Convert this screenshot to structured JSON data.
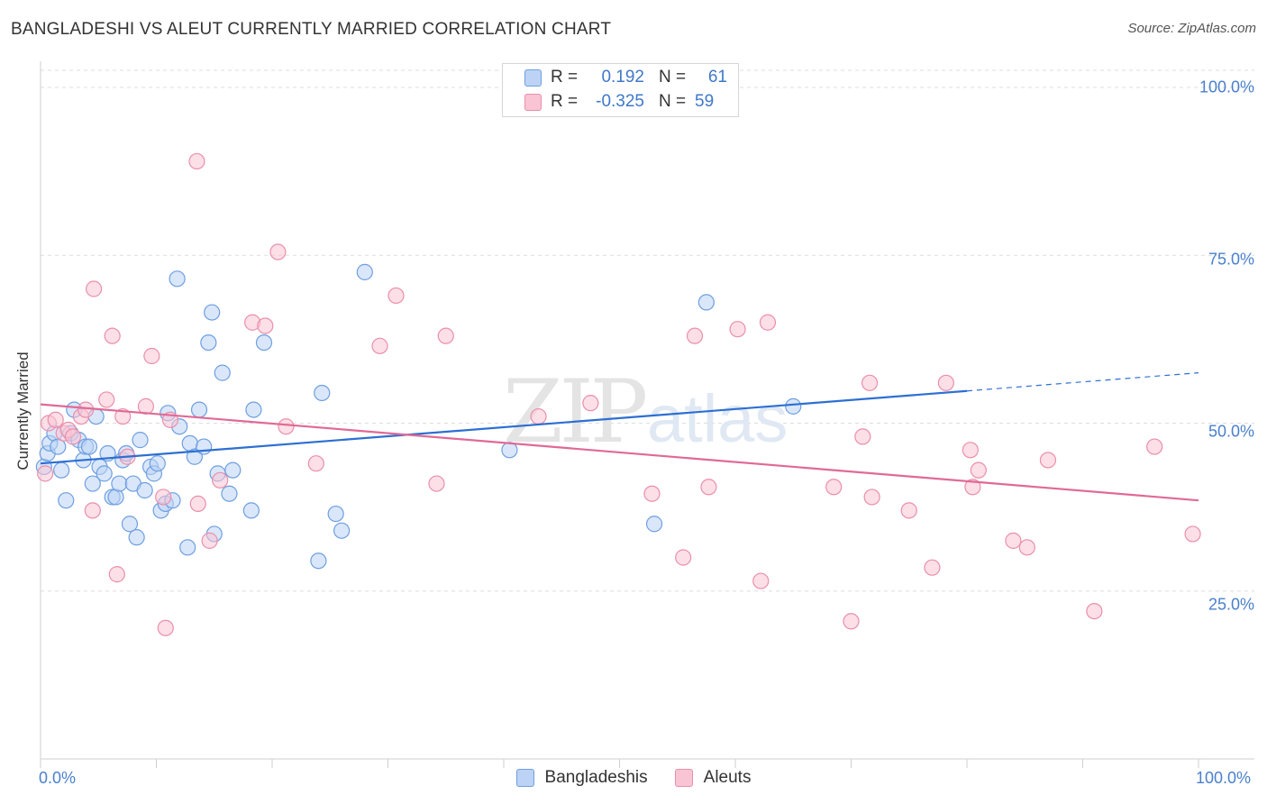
{
  "header": {
    "title": "BANGLADESHI VS ALEUT CURRENTLY MARRIED CORRELATION CHART",
    "source": "Source: ZipAtlas.com"
  },
  "watermark": {
    "zip": "ZIP",
    "atlas": "atlas"
  },
  "legend": {
    "rows": [
      {
        "r_label": "R =",
        "r_value": "0.192",
        "n_label": "N =",
        "n_value": "61"
      },
      {
        "r_label": "R =",
        "r_value": "-0.325",
        "n_label": "N =",
        "n_value": "59"
      }
    ],
    "bottom": [
      "Bangladeshis",
      "Aleuts"
    ]
  },
  "colors": {
    "blue_fill": "#bcd3f5",
    "blue_stroke": "#6e9fe0",
    "blue_line": "#2d6fd2",
    "pink_fill": "#f9c4d4",
    "pink_stroke": "#ea8fab",
    "pink_line": "#e06a95",
    "tick_text": "#4a80cc",
    "grid": "#dddddd"
  },
  "chart_data": {
    "type": "scatter",
    "title": "BANGLADESHI VS ALEUT CURRENTLY MARRIED CORRELATION CHART",
    "xlabel": "",
    "ylabel": "Currently Married",
    "xlim": [
      0,
      100
    ],
    "ylim": [
      0,
      104
    ],
    "x_tick_labels": [
      "0.0%",
      "100.0%"
    ],
    "y_ticks": [
      25,
      50,
      75,
      100
    ],
    "y_tick_labels": [
      "25.0%",
      "50.0%",
      "75.0%",
      "100.0%"
    ],
    "grid": true,
    "series": [
      {
        "name": "Bangladeshis",
        "r": 0.192,
        "n": 61,
        "trend": {
          "x0": 0,
          "y0": 44.0,
          "x1": 80,
          "y1": 54.8,
          "dash_x1": 100,
          "dash_y1": 57.5
        },
        "points": [
          [
            0.3,
            43.5
          ],
          [
            0.6,
            45.5
          ],
          [
            0.8,
            47.0
          ],
          [
            1.2,
            48.5
          ],
          [
            1.5,
            46.5
          ],
          [
            1.8,
            43.0
          ],
          [
            2.2,
            38.5
          ],
          [
            2.6,
            48.5
          ],
          [
            2.9,
            52.0
          ],
          [
            3.3,
            47.5
          ],
          [
            3.7,
            44.5
          ],
          [
            3.9,
            46.5
          ],
          [
            4.2,
            46.5
          ],
          [
            4.5,
            41.0
          ],
          [
            4.8,
            51.0
          ],
          [
            5.1,
            43.5
          ],
          [
            5.5,
            42.5
          ],
          [
            5.8,
            45.5
          ],
          [
            6.2,
            39.0
          ],
          [
            6.5,
            39.0
          ],
          [
            6.8,
            41.0
          ],
          [
            7.1,
            44.5
          ],
          [
            7.4,
            45.5
          ],
          [
            7.7,
            35.0
          ],
          [
            8.0,
            41.0
          ],
          [
            8.3,
            33.0
          ],
          [
            8.6,
            47.5
          ],
          [
            9.0,
            40.0
          ],
          [
            9.5,
            43.5
          ],
          [
            9.8,
            42.5
          ],
          [
            10.1,
            44.0
          ],
          [
            10.4,
            37.0
          ],
          [
            10.8,
            38.0
          ],
          [
            11.0,
            51.5
          ],
          [
            11.4,
            38.5
          ],
          [
            11.8,
            71.5
          ],
          [
            12.0,
            49.5
          ],
          [
            12.7,
            31.5
          ],
          [
            12.9,
            47.0
          ],
          [
            13.3,
            45.0
          ],
          [
            13.7,
            52.0
          ],
          [
            14.1,
            46.5
          ],
          [
            14.5,
            62.0
          ],
          [
            14.8,
            66.5
          ],
          [
            15.0,
            33.5
          ],
          [
            15.3,
            42.5
          ],
          [
            15.7,
            57.5
          ],
          [
            16.3,
            39.5
          ],
          [
            16.6,
            43.0
          ],
          [
            18.2,
            37.0
          ],
          [
            18.4,
            52.0
          ],
          [
            19.3,
            62.0
          ],
          [
            24.0,
            29.5
          ],
          [
            24.3,
            54.5
          ],
          [
            25.5,
            36.5
          ],
          [
            26.0,
            34.0
          ],
          [
            28.0,
            72.5
          ],
          [
            40.5,
            46.0
          ],
          [
            53.0,
            35.0
          ],
          [
            57.5,
            68.0
          ],
          [
            65.0,
            52.5
          ]
        ]
      },
      {
        "name": "Aleuts",
        "r": -0.325,
        "n": 59,
        "trend": {
          "x0": 0,
          "y0": 52.8,
          "x1": 100,
          "y1": 38.5
        },
        "points": [
          [
            0.4,
            42.5
          ],
          [
            0.7,
            50.0
          ],
          [
            1.3,
            50.5
          ],
          [
            2.0,
            48.5
          ],
          [
            2.4,
            49.0
          ],
          [
            2.8,
            48.0
          ],
          [
            3.5,
            51.0
          ],
          [
            3.9,
            52.0
          ],
          [
            4.5,
            37.0
          ],
          [
            4.6,
            70.0
          ],
          [
            5.7,
            53.5
          ],
          [
            6.2,
            63.0
          ],
          [
            6.6,
            27.5
          ],
          [
            7.1,
            51.0
          ],
          [
            7.5,
            45.0
          ],
          [
            9.1,
            52.5
          ],
          [
            9.6,
            60.0
          ],
          [
            10.6,
            39.0
          ],
          [
            10.8,
            19.5
          ],
          [
            11.2,
            50.5
          ],
          [
            13.5,
            89.0
          ],
          [
            13.6,
            38.0
          ],
          [
            14.6,
            32.5
          ],
          [
            15.5,
            41.5
          ],
          [
            18.3,
            65.0
          ],
          [
            19.4,
            64.5
          ],
          [
            20.5,
            75.5
          ],
          [
            21.2,
            49.5
          ],
          [
            23.8,
            44.0
          ],
          [
            29.3,
            61.5
          ],
          [
            30.7,
            69.0
          ],
          [
            34.2,
            41.0
          ],
          [
            35.0,
            63.0
          ],
          [
            43.0,
            51.0
          ],
          [
            47.5,
            53.0
          ],
          [
            52.8,
            39.5
          ],
          [
            55.5,
            30.0
          ],
          [
            56.5,
            63.0
          ],
          [
            57.7,
            40.5
          ],
          [
            60.2,
            64.0
          ],
          [
            62.2,
            26.5
          ],
          [
            62.8,
            65.0
          ],
          [
            68.5,
            40.5
          ],
          [
            70.0,
            20.5
          ],
          [
            71.0,
            48.0
          ],
          [
            71.6,
            56.0
          ],
          [
            71.8,
            39.0
          ],
          [
            75.0,
            37.0
          ],
          [
            77.0,
            28.5
          ],
          [
            78.2,
            56.0
          ],
          [
            80.3,
            46.0
          ],
          [
            80.5,
            40.5
          ],
          [
            81.0,
            43.0
          ],
          [
            84.0,
            32.5
          ],
          [
            85.2,
            31.5
          ],
          [
            87.0,
            44.5
          ],
          [
            91.0,
            22.0
          ],
          [
            96.2,
            46.5
          ],
          [
            99.5,
            33.5
          ]
        ]
      }
    ]
  }
}
